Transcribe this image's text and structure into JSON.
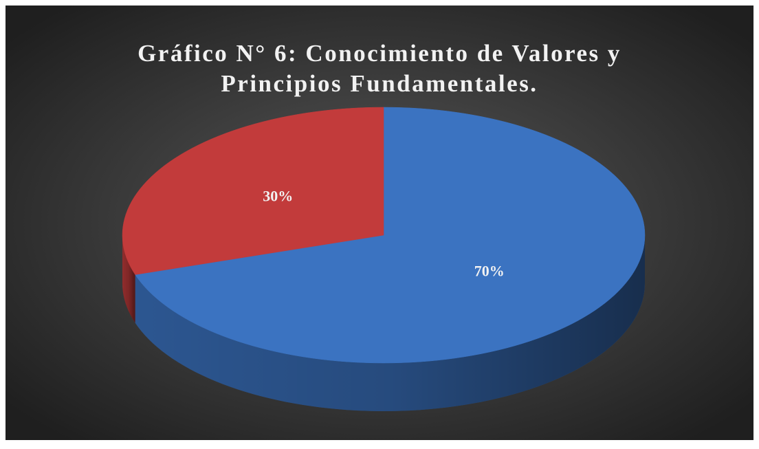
{
  "chart_data": {
    "type": "pie",
    "title": "Gráfico N° 6: Conocimiento de Valores y Principios Fundamentales.",
    "values": [
      70,
      30
    ],
    "value_labels": [
      "70%",
      "30%"
    ],
    "colors": [
      "#3b73c1",
      "#c23b3b"
    ]
  }
}
